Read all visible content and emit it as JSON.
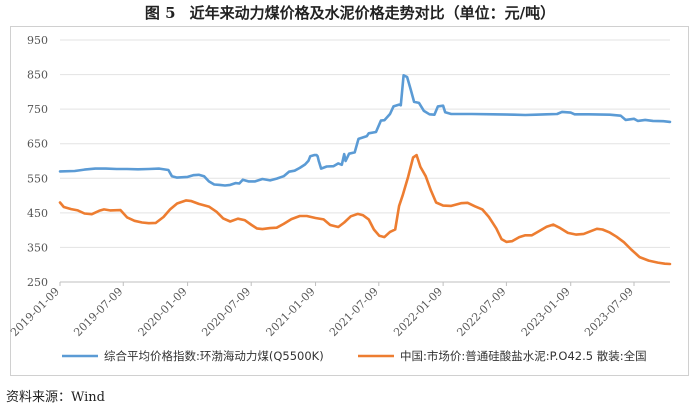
{
  "figure": {
    "label": "图 5",
    "title": "近年来动力煤价格及水泥价格走势对比（单位：元/吨）",
    "source": "资料来源：Wind"
  },
  "chart_data": {
    "type": "line",
    "title": "近年来动力煤价格及水泥价格走势对比（单位：元/吨）",
    "xlabel": "",
    "ylabel": "",
    "unit": "元/吨",
    "ylim": [
      250,
      950
    ],
    "yticks": [
      250,
      350,
      450,
      550,
      650,
      750,
      850,
      950
    ],
    "xlim": [
      "2019-01-09",
      "2023-10-20"
    ],
    "xticks": [
      "2019-01-09",
      "2019-07-09",
      "2020-01-09",
      "2020-07-09",
      "2021-01-09",
      "2021-07-09",
      "2022-01-09",
      "2022-07-09",
      "2023-01-09",
      "2023-07-09"
    ],
    "grid": "horizontal",
    "legend_position": "bottom",
    "series": [
      {
        "name": "综合平均价格指数:环渤海动力煤(Q5500K)",
        "color": "#5b9bd5",
        "points": [
          [
            "2019-01-09",
            570
          ],
          [
            "2019-02-20",
            571
          ],
          [
            "2019-03-20",
            575
          ],
          [
            "2019-04-20",
            578
          ],
          [
            "2019-05-20",
            578
          ],
          [
            "2019-06-20",
            577
          ],
          [
            "2019-07-20",
            577
          ],
          [
            "2019-08-20",
            576
          ],
          [
            "2019-09-20",
            577
          ],
          [
            "2019-10-20",
            578
          ],
          [
            "2019-11-15",
            574
          ],
          [
            "2019-11-25",
            556
          ],
          [
            "2019-12-10",
            552
          ],
          [
            "2020-01-09",
            554
          ],
          [
            "2020-01-25",
            559
          ],
          [
            "2020-02-10",
            560
          ],
          [
            "2020-02-25",
            556
          ],
          [
            "2020-03-10",
            541
          ],
          [
            "2020-03-25",
            532
          ],
          [
            "2020-04-10",
            531
          ],
          [
            "2020-04-25",
            529
          ],
          [
            "2020-05-10",
            531
          ],
          [
            "2020-05-25",
            536
          ],
          [
            "2020-06-05",
            535
          ],
          [
            "2020-06-15",
            546
          ],
          [
            "2020-07-01",
            541
          ],
          [
            "2020-07-20",
            541
          ],
          [
            "2020-08-10",
            548
          ],
          [
            "2020-09-01",
            544
          ],
          [
            "2020-09-20",
            549
          ],
          [
            "2020-10-10",
            556
          ],
          [
            "2020-10-25",
            569
          ],
          [
            "2020-11-10",
            572
          ],
          [
            "2020-11-25",
            580
          ],
          [
            "2020-12-10",
            590
          ],
          [
            "2020-12-20",
            601
          ],
          [
            "2020-12-25",
            614
          ],
          [
            "2021-01-05",
            617
          ],
          [
            "2021-01-12",
            617
          ],
          [
            "2021-01-15",
            614
          ],
          [
            "2021-01-18",
            601
          ],
          [
            "2021-01-25",
            578
          ],
          [
            "2021-02-10",
            584
          ],
          [
            "2021-03-01",
            585
          ],
          [
            "2021-03-15",
            593
          ],
          [
            "2021-03-25",
            589
          ],
          [
            "2021-04-01",
            620
          ],
          [
            "2021-04-05",
            600
          ],
          [
            "2021-04-15",
            621
          ],
          [
            "2021-05-01",
            625
          ],
          [
            "2021-05-12",
            664
          ],
          [
            "2021-06-05",
            672
          ],
          [
            "2021-06-10",
            680
          ],
          [
            "2021-07-01",
            684
          ],
          [
            "2021-07-15",
            717
          ],
          [
            "2021-07-25",
            718
          ],
          [
            "2021-08-10",
            736
          ],
          [
            "2021-08-20",
            758
          ],
          [
            "2021-09-05",
            763
          ],
          [
            "2021-09-10",
            761
          ],
          [
            "2021-09-18",
            848
          ],
          [
            "2021-09-28",
            843
          ],
          [
            "2021-10-08",
            808
          ],
          [
            "2021-10-18",
            771
          ],
          [
            "2021-11-01",
            768
          ],
          [
            "2021-11-15",
            745
          ],
          [
            "2021-12-01",
            735
          ],
          [
            "2021-12-15",
            734
          ],
          [
            "2021-12-25",
            758
          ],
          [
            "2022-01-09",
            760
          ],
          [
            "2022-01-15",
            741
          ],
          [
            "2022-02-01",
            736
          ],
          [
            "2022-03-01",
            736
          ],
          [
            "2022-04-01",
            736
          ],
          [
            "2022-06-01",
            735
          ],
          [
            "2022-08-01",
            734
          ],
          [
            "2022-09-01",
            733
          ],
          [
            "2022-10-01",
            734
          ],
          [
            "2022-11-01",
            735
          ],
          [
            "2022-12-01",
            736
          ],
          [
            "2022-12-15",
            742
          ],
          [
            "2023-01-09",
            740
          ],
          [
            "2023-01-20",
            735
          ],
          [
            "2023-03-01",
            735
          ],
          [
            "2023-05-01",
            734
          ],
          [
            "2023-06-01",
            731
          ],
          [
            "2023-06-15",
            719
          ],
          [
            "2023-07-09",
            722
          ],
          [
            "2023-07-20",
            716
          ],
          [
            "2023-08-10",
            719
          ],
          [
            "2023-09-01",
            716
          ],
          [
            "2023-10-01",
            715
          ],
          [
            "2023-10-20",
            713
          ]
        ]
      },
      {
        "name": "中国:市场价:普通硅酸盐水泥:P.O42.5 散装:全国",
        "color": "#ed7d31",
        "points": [
          [
            "2019-01-09",
            480
          ],
          [
            "2019-01-20",
            467
          ],
          [
            "2019-02-10",
            461
          ],
          [
            "2019-03-01",
            457
          ],
          [
            "2019-03-20",
            448
          ],
          [
            "2019-04-10",
            446
          ],
          [
            "2019-05-01",
            456
          ],
          [
            "2019-05-15",
            460
          ],
          [
            "2019-06-01",
            457
          ],
          [
            "2019-07-01",
            458
          ],
          [
            "2019-07-20",
            437
          ],
          [
            "2019-08-10",
            427
          ],
          [
            "2019-09-01",
            422
          ],
          [
            "2019-09-20",
            420
          ],
          [
            "2019-10-10",
            421
          ],
          [
            "2019-11-01",
            438
          ],
          [
            "2019-11-20",
            460
          ],
          [
            "2019-12-10",
            477
          ],
          [
            "2020-01-05",
            486
          ],
          [
            "2020-01-20",
            484
          ],
          [
            "2020-02-10",
            476
          ],
          [
            "2020-03-10",
            468
          ],
          [
            "2020-04-01",
            453
          ],
          [
            "2020-04-20",
            434
          ],
          [
            "2020-05-10",
            425
          ],
          [
            "2020-06-01",
            433
          ],
          [
            "2020-06-20",
            429
          ],
          [
            "2020-07-10",
            415
          ],
          [
            "2020-07-25",
            405
          ],
          [
            "2020-08-10",
            403
          ],
          [
            "2020-09-01",
            406
          ],
          [
            "2020-09-20",
            407
          ],
          [
            "2020-10-10",
            418
          ],
          [
            "2020-11-01",
            432
          ],
          [
            "2020-11-25",
            441
          ],
          [
            "2020-12-15",
            441
          ],
          [
            "2021-01-09",
            435
          ],
          [
            "2021-02-01",
            431
          ],
          [
            "2021-02-20",
            415
          ],
          [
            "2021-03-15",
            409
          ],
          [
            "2021-04-01",
            422
          ],
          [
            "2021-04-20",
            440
          ],
          [
            "2021-05-10",
            447
          ],
          [
            "2021-05-25",
            443
          ],
          [
            "2021-06-10",
            431
          ],
          [
            "2021-06-25",
            402
          ],
          [
            "2021-07-10",
            384
          ],
          [
            "2021-07-25",
            380
          ],
          [
            "2021-08-10",
            395
          ],
          [
            "2021-08-25",
            402
          ],
          [
            "2021-09-05",
            470
          ],
          [
            "2021-09-15",
            500
          ],
          [
            "2021-10-01",
            555
          ],
          [
            "2021-10-15",
            610
          ],
          [
            "2021-10-25",
            617
          ],
          [
            "2021-11-05",
            583
          ],
          [
            "2021-11-20",
            556
          ],
          [
            "2021-12-05",
            515
          ],
          [
            "2021-12-20",
            480
          ],
          [
            "2022-01-09",
            471
          ],
          [
            "2022-02-01",
            470
          ],
          [
            "2022-03-01",
            478
          ],
          [
            "2022-03-20",
            479
          ],
          [
            "2022-04-10",
            469
          ],
          [
            "2022-05-01",
            460
          ],
          [
            "2022-05-20",
            438
          ],
          [
            "2022-06-10",
            405
          ],
          [
            "2022-06-25",
            374
          ],
          [
            "2022-07-09",
            366
          ],
          [
            "2022-07-25",
            368
          ],
          [
            "2022-08-15",
            380
          ],
          [
            "2022-09-01",
            385
          ],
          [
            "2022-09-20",
            385
          ],
          [
            "2022-10-10",
            397
          ],
          [
            "2022-11-01",
            410
          ],
          [
            "2022-11-20",
            416
          ],
          [
            "2022-12-10",
            406
          ],
          [
            "2023-01-01",
            392
          ],
          [
            "2023-01-25",
            387
          ],
          [
            "2023-02-15",
            389
          ],
          [
            "2023-03-10",
            398
          ],
          [
            "2023-03-25",
            404
          ],
          [
            "2023-04-10",
            402
          ],
          [
            "2023-05-01",
            393
          ],
          [
            "2023-05-20",
            381
          ],
          [
            "2023-06-10",
            365
          ],
          [
            "2023-07-01",
            344
          ],
          [
            "2023-07-25",
            322
          ],
          [
            "2023-08-20",
            312
          ],
          [
            "2023-09-15",
            306
          ],
          [
            "2023-10-05",
            303
          ],
          [
            "2023-10-20",
            302
          ]
        ]
      }
    ]
  }
}
